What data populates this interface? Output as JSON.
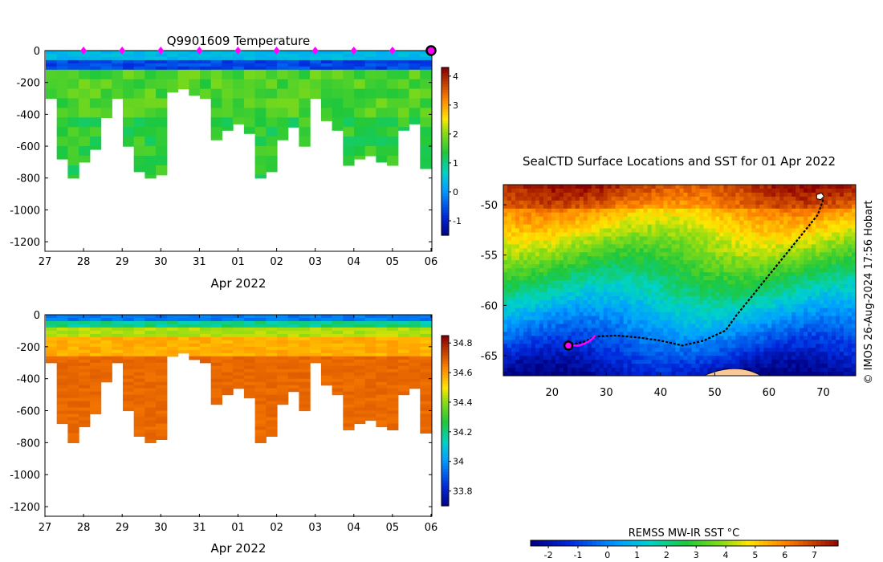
{
  "chart_data": [
    {
      "type": "heatmap",
      "title": "Q9901609  Temperature",
      "xlabel": "Apr 2022",
      "ylabel": "",
      "x_ticks": [
        "27",
        "28",
        "29",
        "30",
        "31",
        "01",
        "02",
        "03",
        "04",
        "05",
        "06"
      ],
      "y_ticks": [
        "0",
        "-200",
        "-400",
        "-600",
        "-800",
        "-1000",
        "-1200"
      ],
      "ylim": [
        -1260,
        0
      ],
      "dive_depths": [
        300,
        680,
        800,
        700,
        620,
        420,
        300,
        600,
        760,
        800,
        780,
        250,
        240,
        280,
        300,
        560,
        500,
        450,
        520,
        800,
        760,
        560,
        480,
        600,
        300,
        440,
        500,
        720,
        680,
        660,
        700,
        720,
        500,
        460,
        740
      ],
      "surface_markers": [
        "28",
        "29",
        "30",
        "31",
        "01",
        "02",
        "03",
        "04",
        "05"
      ],
      "colorbar": {
        "ticks": [
          "4",
          "3",
          "2",
          "1",
          "0",
          "-1"
        ],
        "range": [
          -1.5,
          4.3
        ]
      }
    },
    {
      "type": "heatmap",
      "title": "",
      "xlabel": "Apr 2022",
      "ylabel": "",
      "x_ticks": [
        "27",
        "28",
        "29",
        "30",
        "31",
        "01",
        "02",
        "03",
        "04",
        "05",
        "06"
      ],
      "y_ticks": [
        "0",
        "-200",
        "-400",
        "-600",
        "-800",
        "-1000",
        "-1200"
      ],
      "ylim": [
        -1260,
        0
      ],
      "dive_depths": [
        300,
        680,
        800,
        700,
        620,
        420,
        300,
        600,
        760,
        800,
        780,
        250,
        240,
        280,
        300,
        560,
        500,
        450,
        520,
        800,
        760,
        560,
        480,
        600,
        300,
        440,
        500,
        720,
        680,
        660,
        700,
        720,
        500,
        460,
        740
      ],
      "colorbar": {
        "ticks": [
          "34.8",
          "34.6",
          "34.4",
          "34.2",
          "34",
          "33.8"
        ],
        "range": [
          33.7,
          34.85
        ]
      }
    },
    {
      "type": "heatmap",
      "title": "SealCTD Surface Locations and SST for 01 Apr 2022",
      "xlabel": "",
      "ylabel": "",
      "x_ticks": [
        "20",
        "30",
        "40",
        "50",
        "60",
        "70"
      ],
      "y_ticks": [
        "-50",
        "-55",
        "-60",
        "-65"
      ],
      "xlim": [
        11,
        76
      ],
      "ylim": [
        -67,
        -48
      ],
      "track": [
        [
          70,
          -49.5
        ],
        [
          69,
          -51
        ],
        [
          66,
          -53
        ],
        [
          63,
          -55
        ],
        [
          60,
          -57
        ],
        [
          57,
          -59
        ],
        [
          54,
          -61
        ],
        [
          52,
          -62.5
        ],
        [
          48,
          -63.5
        ],
        [
          44,
          -64
        ],
        [
          40,
          -63.5
        ],
        [
          36,
          -63.2
        ],
        [
          32,
          -63
        ],
        [
          28,
          -63.1
        ],
        [
          26,
          -63.6
        ],
        [
          23,
          -64
        ]
      ],
      "recent_track": [
        [
          28,
          -63.0
        ],
        [
          27,
          -63.5
        ],
        [
          26,
          -63.8
        ],
        [
          25,
          -64
        ],
        [
          23,
          -64
        ]
      ],
      "current_position": [
        23,
        -64
      ],
      "colorbar_label": "REMSS MW-IR SST °C",
      "colorbar_ticks": [
        "-2",
        "-1",
        "0",
        "1",
        "2",
        "3",
        "4",
        "5",
        "6",
        "7"
      ],
      "colorbar_range": [
        -2.6,
        7.8
      ]
    }
  ],
  "credit": "© IMOS 26-Aug-2024 17:56 Hobart"
}
